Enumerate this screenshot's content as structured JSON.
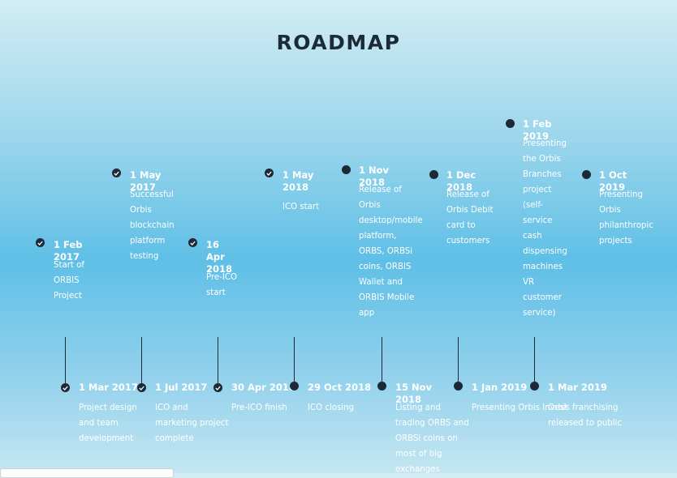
{
  "page": {
    "title": "ROADMAP"
  },
  "top_milestones": [
    {
      "date": "1 Feb 2017",
      "desc": "Start of ORBIS Project",
      "status": "done"
    },
    {
      "date": "1 May 2017",
      "desc": "Successful Orbis blockchain platform testing",
      "status": "done"
    },
    {
      "date": "16 Apr 2018",
      "desc": "Pre-ICO start",
      "status": "done"
    },
    {
      "date": "1 May 2018",
      "desc": "ICO start",
      "status": "done"
    },
    {
      "date": "1 Nov 2018",
      "desc": "Release of Orbis desktop/mobile platform, ORBS, ORBSi coins, ORBIS Wallet and ORBIS Mobile app",
      "status": "pending"
    },
    {
      "date": "1 Dec 2018",
      "desc": "Release of Orbis Debit card to customers",
      "status": "pending"
    },
    {
      "date": "1 Feb 2019",
      "desc": "Presenting the Orbis Branches project (self-service cash dispensing machines VR customer service)",
      "status": "pending"
    },
    {
      "date": "1 Oct 2019",
      "desc": "Presenting Orbis philanthropic projects",
      "status": "pending"
    }
  ],
  "bottom_milestones": [
    {
      "date": "1 Mar 2017",
      "desc": "Project design and team development",
      "status": "done"
    },
    {
      "date": "1 Jul 2017",
      "desc": "ICO and marketing project complete",
      "status": "done"
    },
    {
      "date": "30 Apr 2018",
      "desc": "Pre-ICO finish",
      "status": "done"
    },
    {
      "date": "29 Oct 2018",
      "desc": "ICO closing",
      "status": "pending"
    },
    {
      "date": "15 Nov 2018",
      "desc": "Listing and trading ORBS and ORBSi coins on most of big exchanges",
      "status": "pending"
    },
    {
      "date": "1 Jan 2019",
      "desc": "Presenting Orbis Invest",
      "status": "pending"
    },
    {
      "date": "1 Mar 2019",
      "desc": "Orbis franchising released to public",
      "status": "pending"
    }
  ],
  "colors": {
    "marker": "#1d2936",
    "text": "#ffffff",
    "title": "#1c2b38"
  }
}
